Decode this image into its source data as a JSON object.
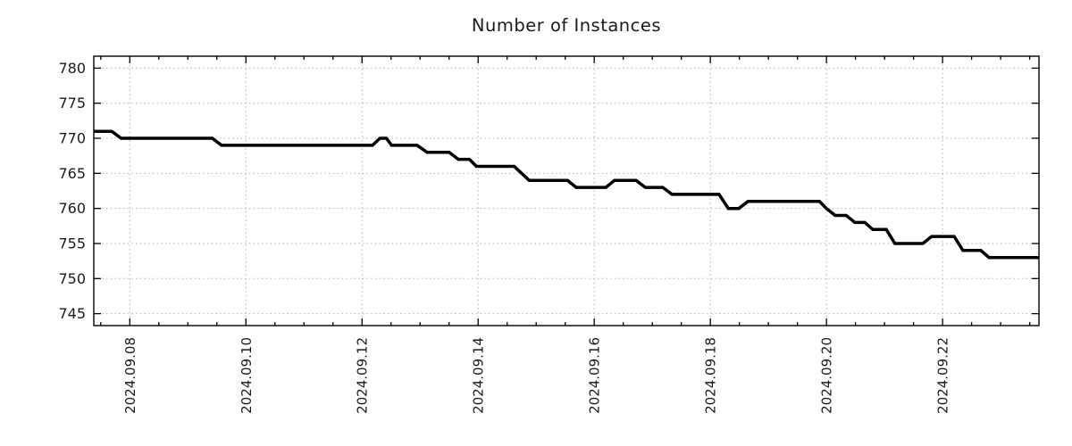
{
  "page": {
    "background_color": "#ffffff",
    "text_color": "#1a1a1a"
  },
  "chart_data": {
    "type": "line",
    "title": "Number of Instances",
    "xlabel": "",
    "ylabel": "",
    "legend": "none",
    "x_unit": "day of month, September 2024 (fractional days)",
    "xlim": [
      7.38,
      23.66
    ],
    "ylim": [
      743.3,
      781.7
    ],
    "x_major_ticks": [
      {
        "day": 8,
        "label": "2024.09.08"
      },
      {
        "day": 10,
        "label": "2024.09.10"
      },
      {
        "day": 12,
        "label": "2024.09.12"
      },
      {
        "day": 14,
        "label": "2024.09.14"
      },
      {
        "day": 16,
        "label": "2024.09.16"
      },
      {
        "day": 18,
        "label": "2024.09.18"
      },
      {
        "day": 20,
        "label": "2024.09.20"
      },
      {
        "day": 22,
        "label": "2024.09.22"
      }
    ],
    "x_minor_tick_interval": 0.5,
    "x_tick_label_rotation": -90,
    "y_major_ticks": [
      745,
      750,
      755,
      760,
      765,
      770,
      775,
      780
    ],
    "grid": {
      "show": true,
      "style": "dotted",
      "color": "#b0b0b0"
    },
    "axis_color": "#000000",
    "ticks_mirrored_inward": true,
    "series": [
      {
        "name": "Number of Instances",
        "color": "#000000",
        "line_width": 3.5,
        "points": [
          [
            7.38,
            771
          ],
          [
            7.69,
            771
          ],
          [
            7.85,
            770
          ],
          [
            9.42,
            770
          ],
          [
            9.58,
            769
          ],
          [
            12.18,
            769
          ],
          [
            12.31,
            770
          ],
          [
            12.42,
            770
          ],
          [
            12.51,
            769
          ],
          [
            12.95,
            769
          ],
          [
            13.12,
            768
          ],
          [
            13.5,
            768
          ],
          [
            13.66,
            767
          ],
          [
            13.85,
            767
          ],
          [
            13.97,
            766
          ],
          [
            14.62,
            766
          ],
          [
            14.88,
            764
          ],
          [
            15.54,
            764
          ],
          [
            15.69,
            763
          ],
          [
            16.2,
            763
          ],
          [
            16.35,
            764
          ],
          [
            16.72,
            764
          ],
          [
            16.88,
            763
          ],
          [
            17.18,
            763
          ],
          [
            17.34,
            762
          ],
          [
            18.15,
            762
          ],
          [
            18.31,
            760
          ],
          [
            18.49,
            760
          ],
          [
            18.65,
            761
          ],
          [
            19.88,
            761
          ],
          [
            20.0,
            760
          ],
          [
            20.15,
            759
          ],
          [
            20.34,
            759
          ],
          [
            20.49,
            758
          ],
          [
            20.66,
            758
          ],
          [
            20.8,
            757
          ],
          [
            21.03,
            757
          ],
          [
            21.18,
            755
          ],
          [
            21.66,
            755
          ],
          [
            21.81,
            756
          ],
          [
            22.2,
            756
          ],
          [
            22.35,
            754
          ],
          [
            22.66,
            754
          ],
          [
            22.8,
            753
          ],
          [
            23.66,
            753
          ]
        ]
      }
    ]
  }
}
